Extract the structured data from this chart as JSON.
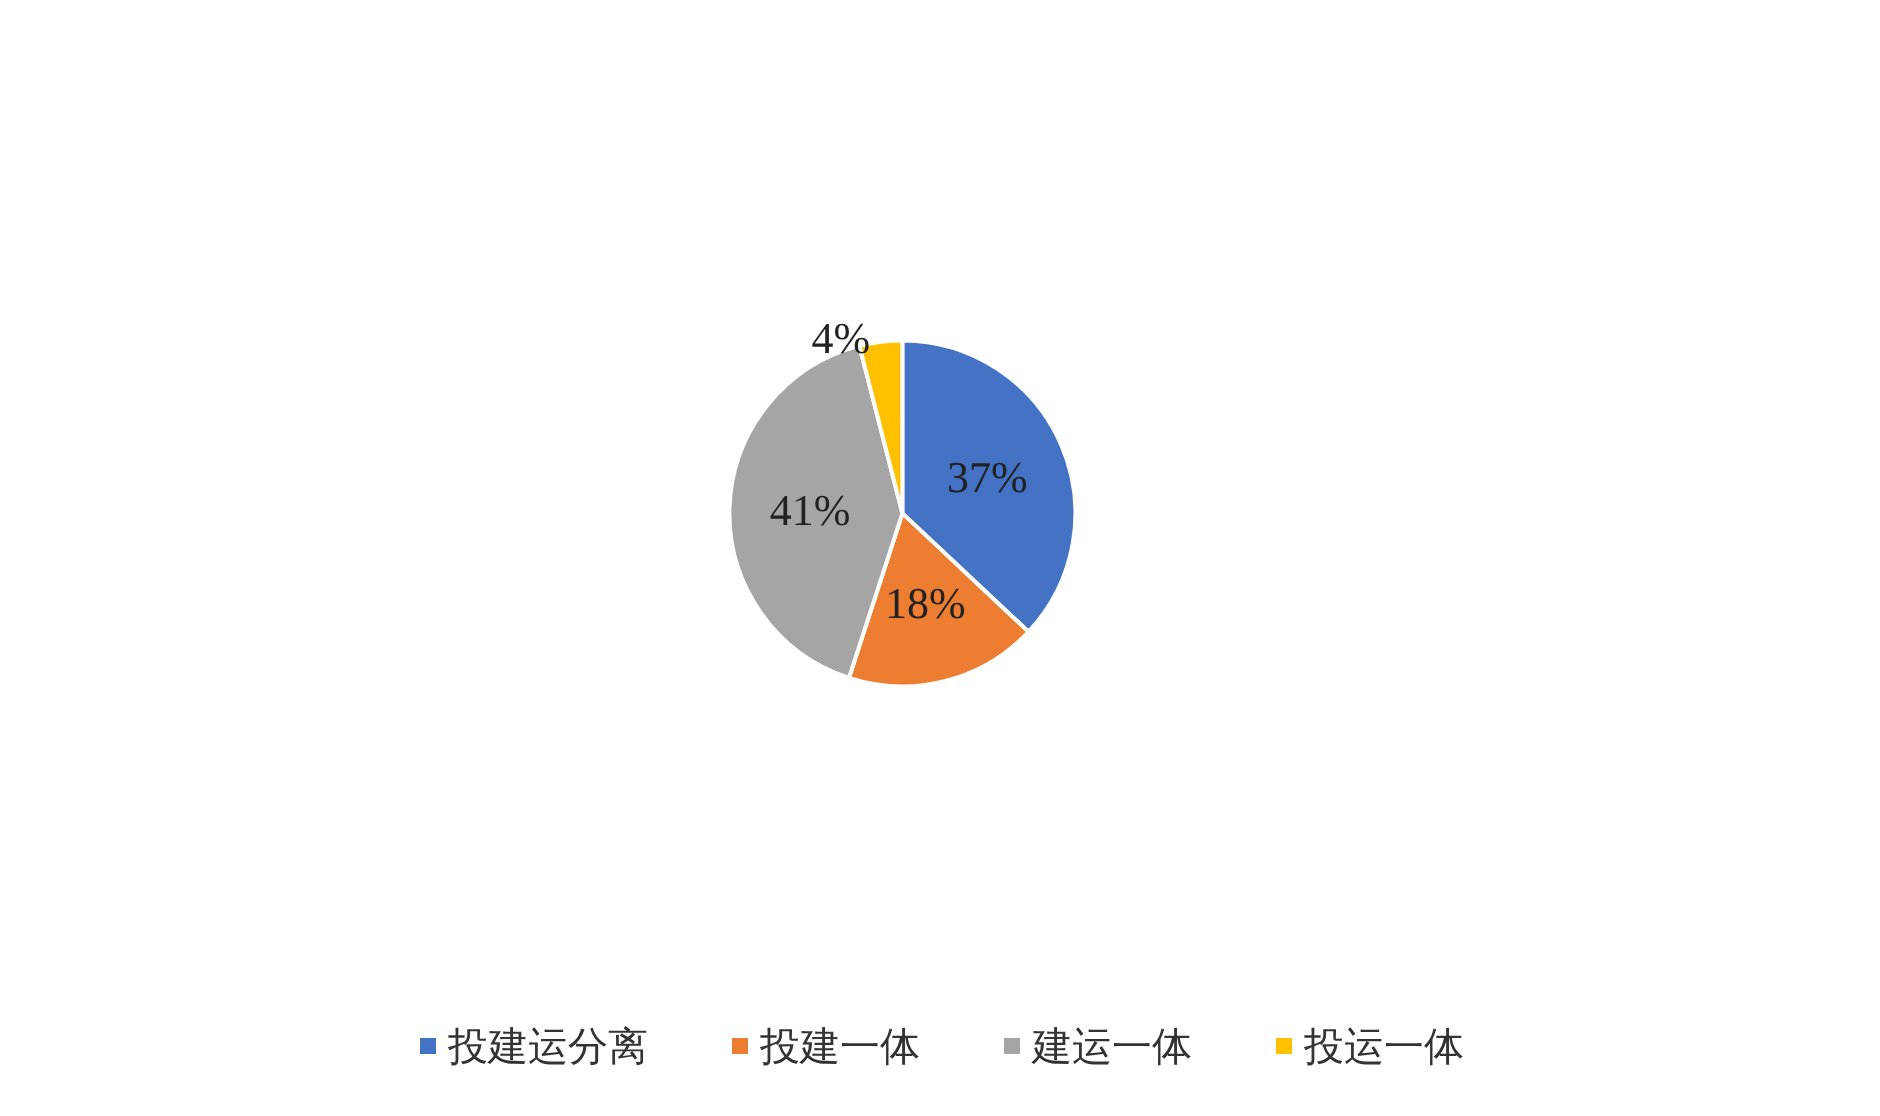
{
  "chart_data": {
    "type": "pie",
    "categories": [
      "投建运分离",
      "投建一体",
      "建运一体",
      "投运一体"
    ],
    "values": [
      37,
      18,
      41,
      4
    ],
    "colors": [
      "#4472c4",
      "#ed7d31",
      "#a5a5a5",
      "#ffc000"
    ],
    "value_labels": [
      "37%",
      "18%",
      "41%",
      "4%"
    ],
    "legend": "bottom"
  }
}
